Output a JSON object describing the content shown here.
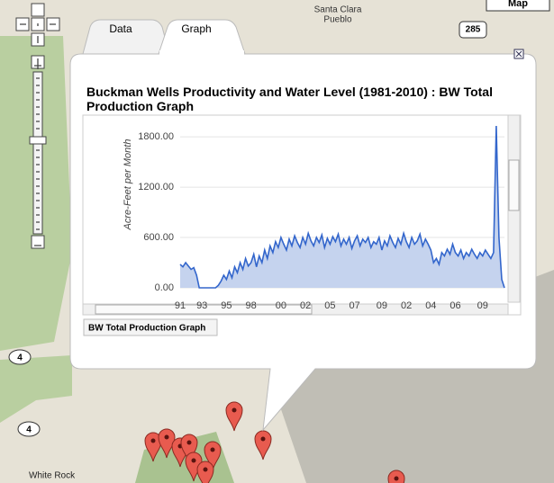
{
  "map": {
    "labels": [
      "Santa Clara",
      "Pueblo",
      "White Rock"
    ],
    "shields": [
      "285",
      "4",
      "4"
    ],
    "map_button": "Map"
  },
  "tabs": [
    "Data",
    "Graph"
  ],
  "popup_title": "Buckman Wells Productivity and Water Level (1981-2010) : BW Total Production Graph",
  "sheet_tab": "BW Total Production Graph",
  "chart_data": {
    "type": "area",
    "ylabel": "Acre-Feet per Month",
    "color": "#3366cc",
    "fill": "#c5d3ee",
    "values": [
      280,
      250,
      300,
      260,
      220,
      240,
      150,
      0,
      0,
      0,
      0,
      0,
      0,
      0,
      30,
      80,
      150,
      100,
      200,
      120,
      250,
      180,
      300,
      220,
      350,
      260,
      300,
      400,
      250,
      380,
      300,
      450,
      350,
      500,
      420,
      550,
      480,
      600,
      520,
      450,
      580,
      500,
      620,
      540,
      480,
      600,
      520,
      650,
      560,
      500,
      600,
      540,
      630,
      480,
      590,
      520,
      610,
      550,
      640,
      500,
      580,
      520,
      600,
      470,
      560,
      620,
      500,
      580,
      540,
      600,
      480,
      550,
      520,
      600,
      450,
      560,
      500,
      620,
      540,
      480,
      590,
      520,
      650,
      550,
      480,
      600,
      520,
      560,
      640,
      500,
      580,
      520,
      450,
      300,
      350,
      280,
      420,
      380,
      460,
      400,
      520,
      420,
      380,
      450,
      350,
      420,
      380,
      460,
      400,
      350,
      420,
      380,
      450,
      400,
      350,
      420,
      1930,
      600,
      100,
      0
    ],
    "xlim": [
      0,
      119
    ],
    "xticks": [
      {
        "value": 0,
        "label": "91"
      },
      {
        "value": 8,
        "label": "93"
      },
      {
        "value": 17,
        "label": "95"
      },
      {
        "value": 26,
        "label": "98"
      },
      {
        "value": 37,
        "label": "00"
      },
      {
        "value": 46,
        "label": "02"
      },
      {
        "value": 55,
        "label": "05"
      },
      {
        "value": 64,
        "label": "07"
      },
      {
        "value": 74,
        "label": "09"
      },
      {
        "value": 83,
        "label": "02"
      },
      {
        "value": 92,
        "label": "04"
      },
      {
        "value": 101,
        "label": "06"
      },
      {
        "value": 111,
        "label": "09"
      }
    ],
    "ylim": [
      0,
      1930
    ],
    "yticks": [
      {
        "value": 0,
        "label": "0.00"
      },
      {
        "value": 600,
        "label": "600.00"
      },
      {
        "value": 1200,
        "label": "1200.00"
      },
      {
        "value": 1800,
        "label": "1800.00"
      }
    ]
  }
}
